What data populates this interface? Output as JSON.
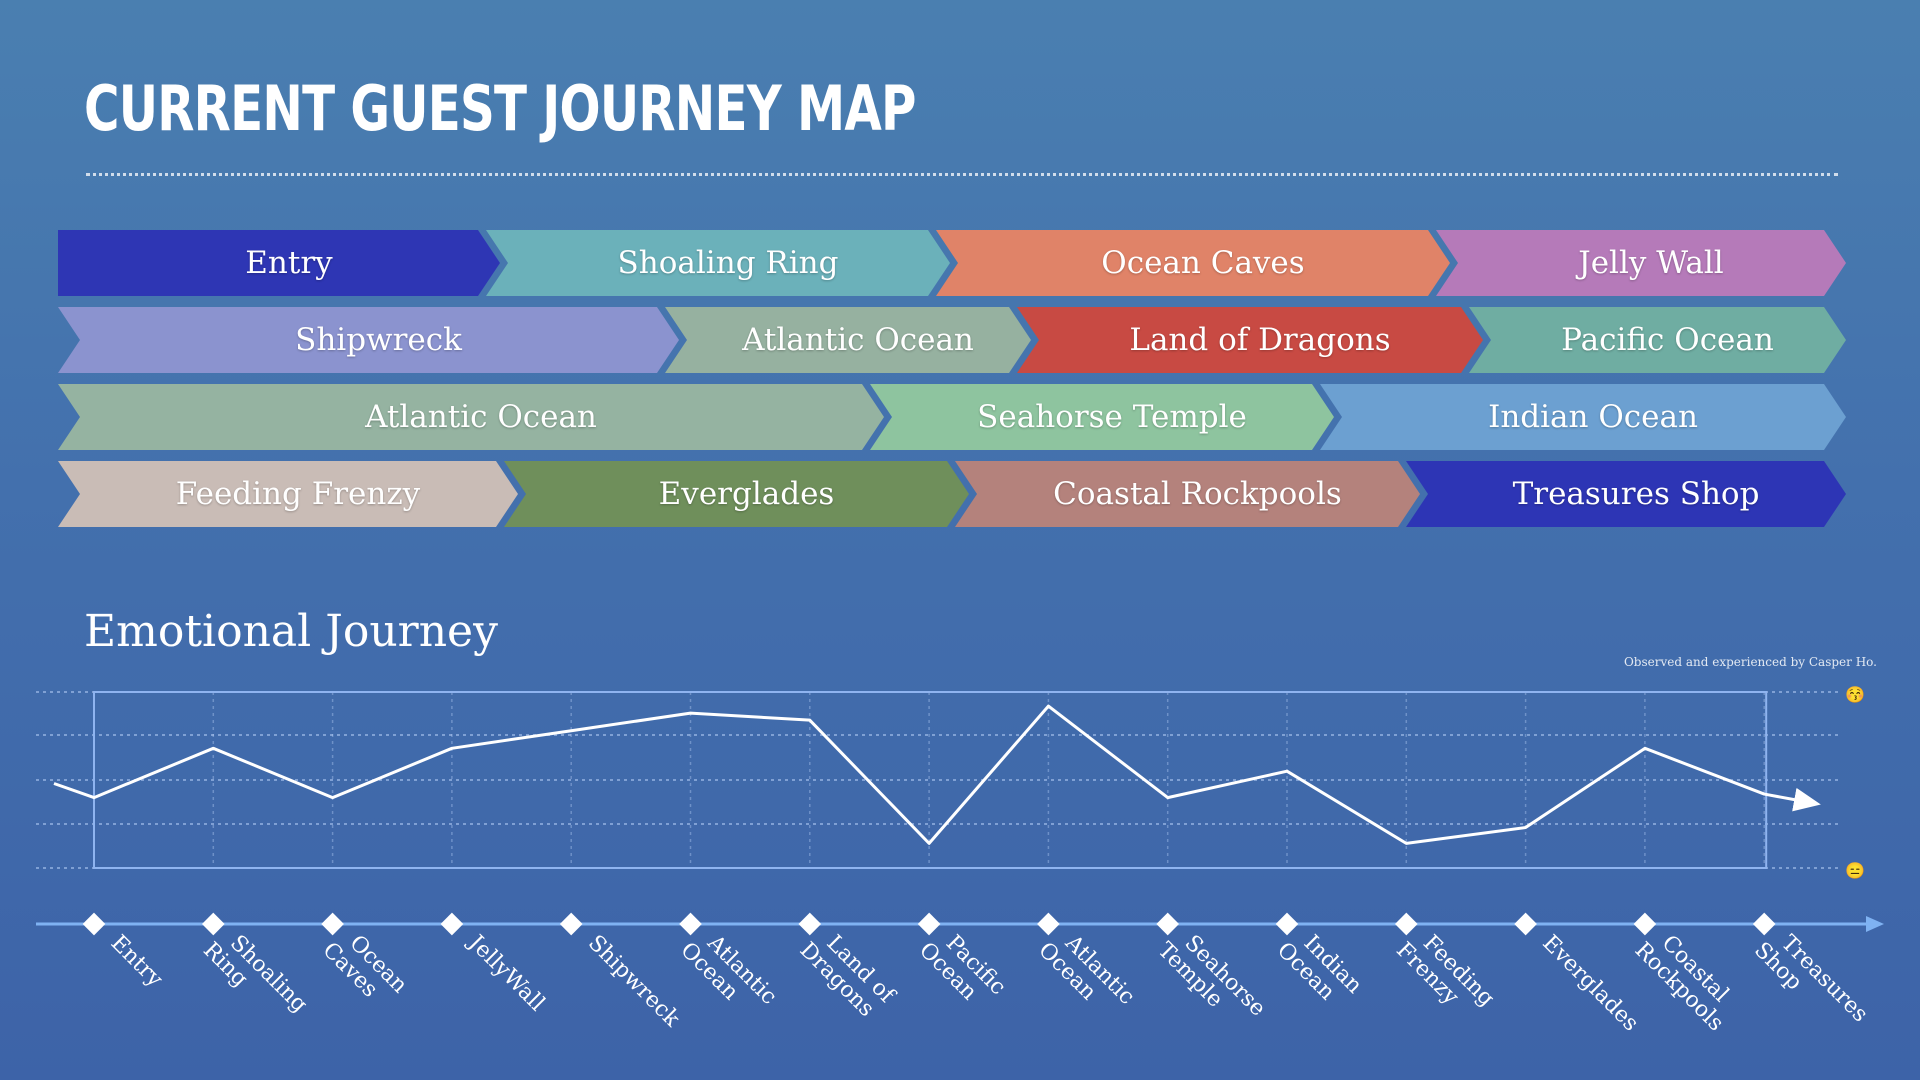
{
  "title": "CURRENT GUEST JOURNEY MAP",
  "journey_rows": [
    [
      {
        "label": "Entry",
        "color": "#2e36b4",
        "span": 428
      },
      {
        "label": "Shoaling Ring",
        "color": "#6bb1ba",
        "span": 450
      },
      {
        "label": "Ocean Caves",
        "color": "#e08368",
        "span": 500
      },
      {
        "label": "Jelly Wall",
        "color": "#b57ab9",
        "span": 410
      }
    ],
    [
      {
        "label": "Shipwreck",
        "color": "#8b93cf",
        "span": 607
      },
      {
        "label": "Atlantic Ocean",
        "color": "#96b1a0",
        "span": 352
      },
      {
        "label": "Land of Dragons",
        "color": "#c84a43",
        "span": 452
      },
      {
        "label": "Pacific Ocean",
        "color": "#6fada2",
        "span": 377
      }
    ],
    [
      {
        "label": "Atlantic Ocean",
        "color": "#95b3a1",
        "span": 812
      },
      {
        "label": "Seahorse Temple",
        "color": "#8ec49f",
        "span": 450
      },
      {
        "label": "Indian Ocean",
        "color": "#6ca0d1",
        "span": 526
      }
    ],
    [
      {
        "label": "Feeding Frenzy",
        "color": "#c9bcb6",
        "span": 446
      },
      {
        "label": "Everglades",
        "color": "#6f8f5b",
        "span": 451
      },
      {
        "label": "Coastal Rockpools",
        "color": "#b4827c",
        "span": 451
      },
      {
        "label": "Treasures Shop",
        "color": "#2d35b5",
        "span": 440
      }
    ]
  ],
  "emotional": {
    "title": "Emotional Journey",
    "credit": "Observed and experienced by Casper Ho.",
    "happy_icon": "😚",
    "neutral_icon": "😑",
    "stages": [
      {
        "label": "Entry",
        "score": 0.4
      },
      {
        "label": "Shoaling Ring",
        "score": 0.68
      },
      {
        "label": "Ocean Caves",
        "score": 0.4
      },
      {
        "label": "JellyWall",
        "score": 0.68
      },
      {
        "label": "Shipwreck",
        "score": 0.78
      },
      {
        "label": "Atlantic Ocean",
        "score": 0.88
      },
      {
        "label": "Land of Dragons",
        "score": 0.84
      },
      {
        "label": "Pacific Ocean",
        "score": 0.14
      },
      {
        "label": "Atlantic Ocean",
        "score": 0.92
      },
      {
        "label": "Seahorse Temple",
        "score": 0.4
      },
      {
        "label": "Indian Ocean",
        "score": 0.55
      },
      {
        "label": "Feeding Frenzy",
        "score": 0.14
      },
      {
        "label": "Everglades",
        "score": 0.23
      },
      {
        "label": "Coastal Rockpools",
        "score": 0.68
      },
      {
        "label": "Treasures Shop",
        "score": 0.42
      }
    ],
    "start_score": 0.48,
    "end_score": 0.37
  }
}
